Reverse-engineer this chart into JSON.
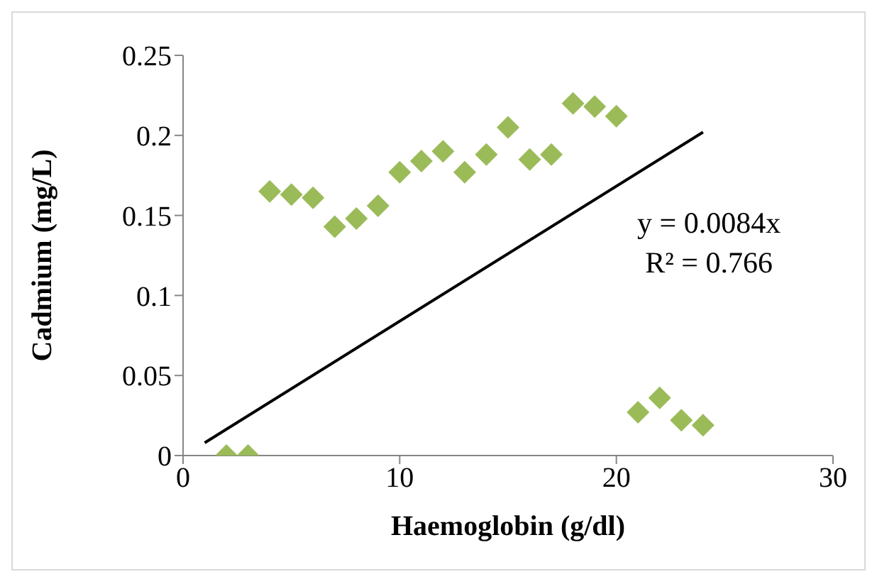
{
  "chart_data": {
    "type": "scatter",
    "xlabel": "Haemoglobin (g/dl)",
    "ylabel": "Cadmium (mg/L)",
    "xlim": [
      0,
      30
    ],
    "xticks": [
      0,
      10,
      20,
      30
    ],
    "ylim": [
      0,
      0.25
    ],
    "yticks": [
      0,
      0.05,
      0.1,
      0.15,
      0.2,
      0.25
    ],
    "grid": false,
    "legend": false,
    "marker": "diamond",
    "annotations": [
      "y = 0.0084x",
      "R² = 0.766"
    ],
    "series": [
      {
        "color": "#9bbb59",
        "x": [
          2,
          3,
          4,
          5,
          6,
          7,
          8,
          9,
          10,
          11,
          12,
          13,
          14,
          15,
          16,
          17,
          18,
          19,
          20,
          21,
          22,
          23,
          24
        ],
        "values": [
          0,
          0,
          0.165,
          0.163,
          0.161,
          0.143,
          0.148,
          0.156,
          0.177,
          0.184,
          0.19,
          0.177,
          0.188,
          0.205,
          0.185,
          0.188,
          0.22,
          0.218,
          0.212,
          0.027,
          0.036,
          0.022,
          0.019
        ]
      },
      {
        "type": "line",
        "color": "#000000",
        "marker": "none",
        "x": [
          1,
          24
        ],
        "values": [
          0.008,
          0.202
        ]
      }
    ]
  }
}
